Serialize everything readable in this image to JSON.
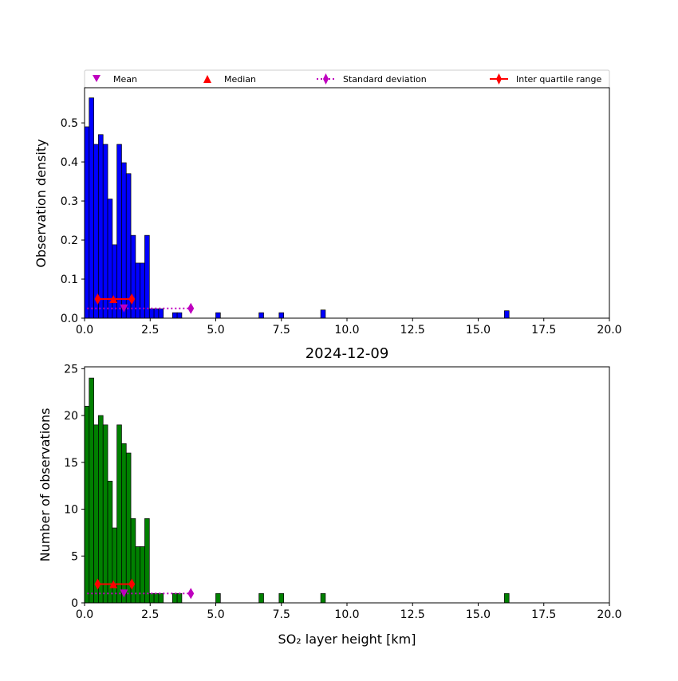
{
  "legend": {
    "entries": [
      {
        "key": "mean",
        "label": "Mean",
        "color": "#bf00bf",
        "marker": "triangle-down-icon"
      },
      {
        "key": "median",
        "label": "Median",
        "color": "#ff0000",
        "marker": "triangle-up-icon"
      },
      {
        "key": "std",
        "label": "Standard deviation",
        "color": "#bf00bf",
        "marker": "thin-diamond-icon",
        "line": "dotted"
      },
      {
        "key": "iqr",
        "label": "Inter quartile range",
        "color": "#ff0000",
        "marker": "thin-diamond-icon",
        "line": "solid"
      }
    ]
  },
  "chart_data": [
    {
      "type": "bar",
      "title": "",
      "xlabel": "",
      "ylabel": "Observation density",
      "xlim": [
        0,
        20
      ],
      "ylim": [
        0,
        0.59
      ],
      "xticks": [
        "0.0",
        "2.5",
        "5.0",
        "7.5",
        "10.0",
        "12.5",
        "15.0",
        "17.5",
        "20.0"
      ],
      "xtick_values": [
        0,
        2.5,
        5,
        7.5,
        10,
        12.5,
        15,
        17.5,
        20
      ],
      "yticks": [
        "0.0",
        "0.1",
        "0.2",
        "0.3",
        "0.4",
        "0.5"
      ],
      "ytick_values": [
        0,
        0.1,
        0.2,
        0.3,
        0.4,
        0.5
      ],
      "bar_color": "#0000ff",
      "bin_width": 0.1765,
      "bin_starts": [
        0.0,
        0.176,
        0.353,
        0.529,
        0.706,
        0.882,
        1.059,
        1.235,
        1.412,
        1.588,
        1.765,
        1.941,
        2.118,
        2.294,
        2.471,
        2.647,
        2.824,
        3.0,
        3.353,
        3.529,
        5.0,
        6.647,
        7.412,
        9.0,
        16.0
      ],
      "values": [
        0.49,
        0.564,
        0.445,
        0.47,
        0.445,
        0.305,
        0.188,
        0.445,
        0.398,
        0.37,
        0.212,
        0.141,
        0.141,
        0.212,
        0.024,
        0.024,
        0.024,
        0.0,
        0.014,
        0.014,
        0.014,
        0.014,
        0.014,
        0.021,
        0.019
      ],
      "stats": {
        "mean": {
          "x": 1.5,
          "y": 0.025
        },
        "median": {
          "x": 1.1,
          "y": 0.049
        },
        "std": {
          "x_start": 0.1,
          "x_end": 4.05,
          "y": 0.025
        },
        "iqr": {
          "x_start": 0.5,
          "x_end": 1.8,
          "y": 0.049
        }
      }
    },
    {
      "type": "bar",
      "title": "2024-12-09",
      "xlabel": "SO₂ layer height [km]",
      "ylabel": "Number of observations",
      "xlim": [
        0,
        20
      ],
      "ylim": [
        0,
        25.2
      ],
      "xticks": [
        "0.0",
        "2.5",
        "5.0",
        "7.5",
        "10.0",
        "12.5",
        "15.0",
        "17.5",
        "20.0"
      ],
      "xtick_values": [
        0,
        2.5,
        5,
        7.5,
        10,
        12.5,
        15,
        17.5,
        20
      ],
      "yticks": [
        "0",
        "5",
        "10",
        "15",
        "20",
        "25"
      ],
      "ytick_values": [
        0,
        5,
        10,
        15,
        20,
        25
      ],
      "bar_color": "#008000",
      "bin_width": 0.1765,
      "bin_starts": [
        0.0,
        0.176,
        0.353,
        0.529,
        0.706,
        0.882,
        1.059,
        1.235,
        1.412,
        1.588,
        1.765,
        1.941,
        2.118,
        2.294,
        2.471,
        2.647,
        2.824,
        3.0,
        3.353,
        3.529,
        5.0,
        6.647,
        7.412,
        9.0,
        16.0
      ],
      "values": [
        21,
        24,
        19,
        20,
        19,
        13,
        8,
        19,
        17,
        16,
        9,
        6,
        6,
        9,
        1,
        1,
        1,
        0,
        1,
        1,
        1,
        1,
        1,
        1,
        1
      ],
      "stats": {
        "mean": {
          "x": 1.5,
          "y": 1.0
        },
        "median": {
          "x": 1.1,
          "y": 2.0
        },
        "std": {
          "x_start": 0.1,
          "x_end": 4.05,
          "y": 1.0
        },
        "iqr": {
          "x_start": 0.5,
          "x_end": 1.8,
          "y": 2.0
        }
      }
    }
  ]
}
